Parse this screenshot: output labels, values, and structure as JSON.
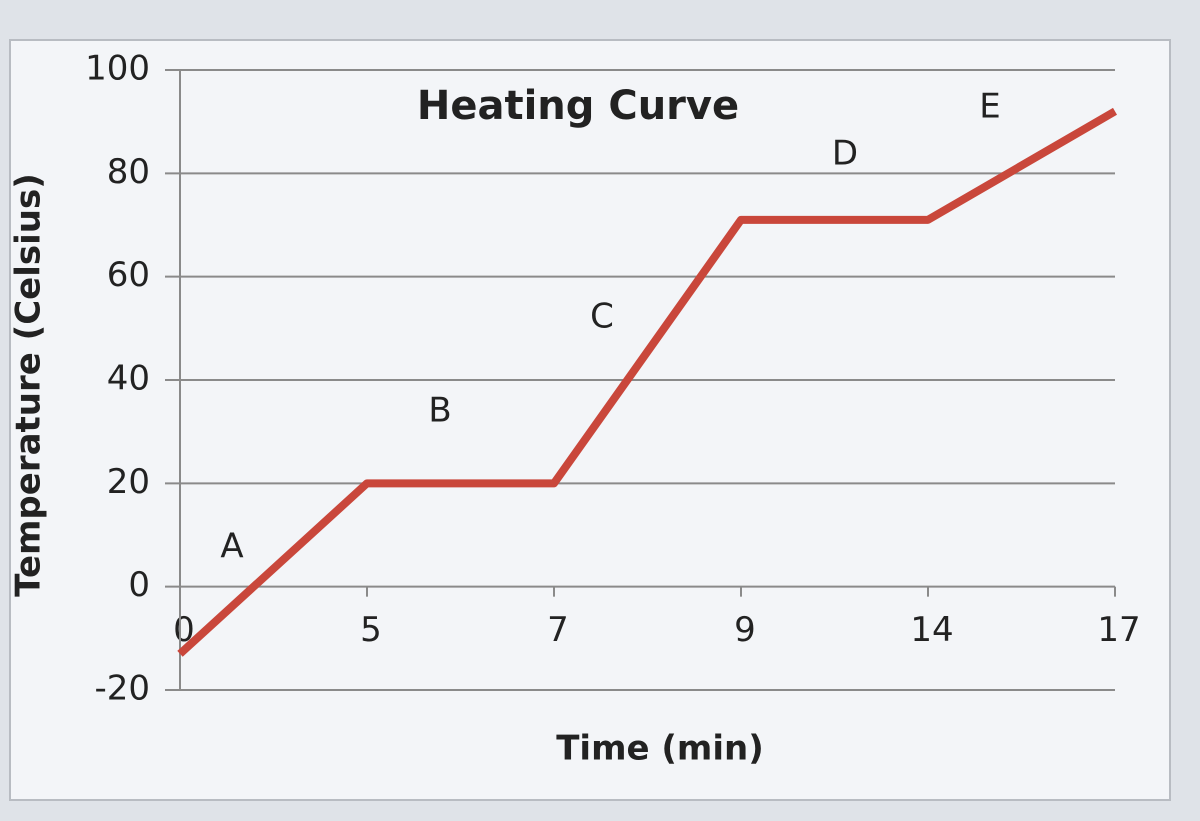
{
  "chart_data": {
    "type": "line",
    "title": "Heating Curve",
    "x_label": "Time (min)",
    "y_label": "Temperature (Celsius)",
    "categories": [
      "0",
      "5",
      "7",
      "9",
      "14",
      "17"
    ],
    "values": [
      -13,
      20,
      20,
      71,
      71,
      92
    ],
    "color": "#c9473b",
    "ylim": [
      -20,
      100
    ],
    "yticks": [
      -20,
      0,
      20,
      40,
      60,
      80,
      100
    ],
    "grid": true,
    "annotations": [
      "A",
      "B",
      "C",
      "D",
      "E"
    ]
  }
}
